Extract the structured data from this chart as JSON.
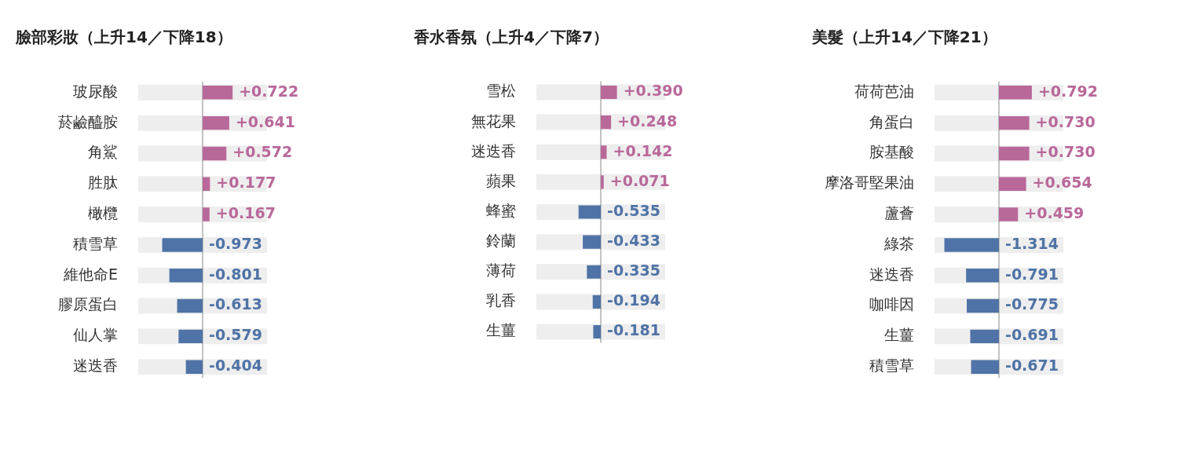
{
  "chart_data": [
    {
      "type": "bar",
      "orientation": "horizontal",
      "title": "臉部彩妝（上升14／下降18）",
      "categories": [
        "玻尿酸",
        "菸鹼醯胺",
        "角鯊",
        "胜肽",
        "橄欖",
        "積雪草",
        "維他命E",
        "膠原蛋白",
        "仙人掌",
        "迷迭香"
      ],
      "values": [
        0.722,
        0.641,
        0.572,
        0.177,
        0.167,
        -0.973,
        -0.801,
        -0.613,
        -0.579,
        -0.404
      ],
      "colors": [
        "#b9689a",
        "#b9689a",
        "#b9689a",
        "#b9689a",
        "#b9689a",
        "#4f73a6",
        "#4f73a6",
        "#4f73a6",
        "#4f73a6",
        "#4f73a6"
      ],
      "value_labels": [
        "+0.722",
        "+0.641",
        "+0.572",
        "+0.177",
        "+0.167",
        "-0.973",
        "-0.801",
        "-0.613",
        "-0.579",
        "-0.404"
      ],
      "xlim": [
        -1.55,
        1.55
      ],
      "tick_labels": "y",
      "ref_lines": [
        {
          "axis": "x",
          "value": 0,
          "color": "#888888"
        }
      ],
      "bands": [
        {
          "axis": "x",
          "from": -1.55,
          "to": 1.55,
          "color": "#eeeeee"
        }
      ]
    },
    {
      "type": "bar",
      "orientation": "horizontal",
      "title": "香水香氛（上升4／下降7）",
      "categories": [
        "雪松",
        "無花果",
        "迷迭香",
        "蘋果",
        "蜂蜜",
        "鈴蘭",
        "薄荷",
        "乳香",
        "生薑"
      ],
      "values": [
        0.39,
        0.248,
        0.142,
        0.071,
        -0.535,
        -0.433,
        -0.335,
        -0.194,
        -0.181
      ],
      "colors": [
        "#b9689a",
        "#b9689a",
        "#b9689a",
        "#b9689a",
        "#4f73a6",
        "#4f73a6",
        "#4f73a6",
        "#4f73a6",
        "#4f73a6"
      ],
      "value_labels": [
        "+0.390",
        "+0.248",
        "+0.142",
        "+0.071",
        "-0.535",
        "-0.433",
        "-0.335",
        "-0.194",
        "-0.181"
      ],
      "xlim": [
        -1.55,
        1.55
      ],
      "tick_labels": "y",
      "ref_lines": [
        {
          "axis": "x",
          "value": 0,
          "color": "#888888"
        }
      ],
      "bands": [
        {
          "axis": "x",
          "from": -1.55,
          "to": 1.55,
          "color": "#eeeeee"
        }
      ]
    },
    {
      "type": "bar",
      "orientation": "horizontal",
      "title": "美髮（上升14／下降21）",
      "categories": [
        "荷荷芭油",
        "角蛋白",
        "胺基酸",
        "摩洛哥堅果油",
        "蘆薈",
        "綠茶",
        "迷迭香",
        "咖啡因",
        "生薑",
        "積雪草"
      ],
      "values": [
        0.792,
        0.73,
        0.73,
        0.654,
        0.459,
        -1.314,
        -0.791,
        -0.775,
        -0.691,
        -0.671
      ],
      "colors": [
        "#b9689a",
        "#b9689a",
        "#b9689a",
        "#b9689a",
        "#b9689a",
        "#4f73a6",
        "#4f73a6",
        "#4f73a6",
        "#4f73a6",
        "#4f73a6"
      ],
      "value_labels": [
        "+0.792",
        "+0.730",
        "+0.730",
        "+0.654",
        "+0.459",
        "-1.314",
        "-0.791",
        "-0.775",
        "-0.691",
        "-0.671"
      ],
      "xlim": [
        -1.55,
        1.55
      ],
      "tick_labels": "y",
      "ref_lines": [
        {
          "axis": "x",
          "value": 0,
          "color": "#888888"
        }
      ],
      "bands": [
        {
          "axis": "x",
          "from": -1.55,
          "to": 1.55,
          "color": "#eeeeee"
        }
      ]
    }
  ]
}
